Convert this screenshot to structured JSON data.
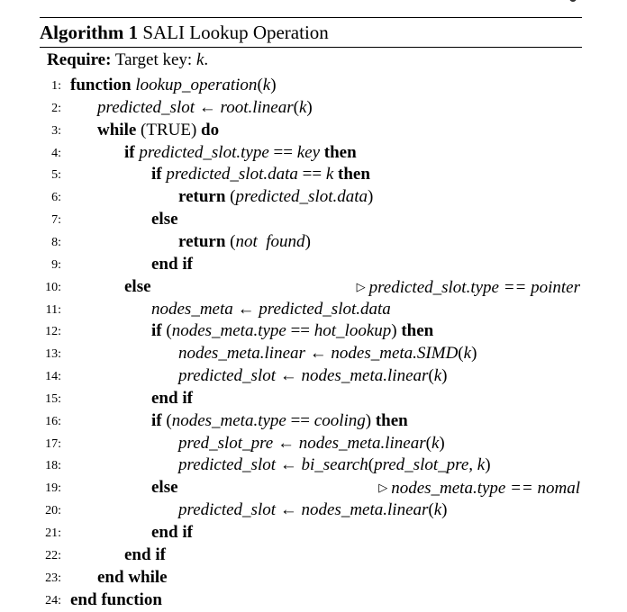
{
  "title": {
    "prefix": "Algorithm 1",
    "text": "SALI Lookup Operation"
  },
  "require": {
    "label": "Require:",
    "text": "Target key: ",
    "var": "k",
    "end": "."
  },
  "lines": [
    {
      "n": "1:",
      "indent": 0,
      "parts": [
        [
          "kw",
          "function "
        ],
        [
          "it",
          "lookup_operation"
        ],
        [
          "n",
          "("
        ],
        [
          "it",
          "k"
        ],
        [
          "n",
          ")"
        ]
      ]
    },
    {
      "n": "2:",
      "indent": 1,
      "parts": [
        [
          "it",
          "predicted_slot"
        ],
        [
          "n",
          " ← "
        ],
        [
          "it",
          "root.linear"
        ],
        [
          "n",
          "("
        ],
        [
          "it",
          "k"
        ],
        [
          "n",
          ")"
        ]
      ]
    },
    {
      "n": "3:",
      "indent": 1,
      "parts": [
        [
          "kw",
          "while "
        ],
        [
          "n",
          "(TRUE) "
        ],
        [
          "kw",
          "do"
        ]
      ]
    },
    {
      "n": "4:",
      "indent": 2,
      "parts": [
        [
          "kw",
          "if "
        ],
        [
          "it",
          "predicted_slot.type"
        ],
        [
          "n",
          " == "
        ],
        [
          "it",
          "key"
        ],
        [
          "kw",
          " then"
        ]
      ]
    },
    {
      "n": "5:",
      "indent": 3,
      "parts": [
        [
          "kw",
          "if "
        ],
        [
          "it",
          "predicted_slot.data"
        ],
        [
          "n",
          " == "
        ],
        [
          "it",
          "k"
        ],
        [
          "kw",
          " then"
        ]
      ]
    },
    {
      "n": "6:",
      "indent": 4,
      "parts": [
        [
          "kw",
          "return "
        ],
        [
          "n",
          "("
        ],
        [
          "it",
          "predicted_slot.data"
        ],
        [
          "n",
          ")"
        ]
      ]
    },
    {
      "n": "7:",
      "indent": 3,
      "parts": [
        [
          "kw",
          "else"
        ]
      ]
    },
    {
      "n": "8:",
      "indent": 4,
      "parts": [
        [
          "kw",
          "return "
        ],
        [
          "n",
          "("
        ],
        [
          "it",
          "not  found"
        ],
        [
          "n",
          ")"
        ]
      ]
    },
    {
      "n": "9:",
      "indent": 3,
      "parts": [
        [
          "kw",
          "end if"
        ]
      ]
    },
    {
      "n": "10:",
      "indent": 2,
      "parts": [
        [
          "kw",
          "else"
        ]
      ],
      "comment": "predicted_slot.type == pointer"
    },
    {
      "n": "11:",
      "indent": 3,
      "parts": [
        [
          "it",
          "nodes_meta"
        ],
        [
          "n",
          " ← "
        ],
        [
          "it",
          "predicted_slot.data"
        ]
      ]
    },
    {
      "n": "12:",
      "indent": 3,
      "parts": [
        [
          "kw",
          "if "
        ],
        [
          "n",
          "("
        ],
        [
          "it",
          "nodes_meta.type"
        ],
        [
          "n",
          " == "
        ],
        [
          "it",
          "hot_lookup"
        ],
        [
          "n",
          ") "
        ],
        [
          "kw",
          "then"
        ]
      ]
    },
    {
      "n": "13:",
      "indent": 4,
      "parts": [
        [
          "it",
          "nodes_meta.linear"
        ],
        [
          "n",
          " ← "
        ],
        [
          "it",
          "nodes_meta.SIMD"
        ],
        [
          "n",
          "("
        ],
        [
          "it",
          "k"
        ],
        [
          "n",
          ")"
        ]
      ]
    },
    {
      "n": "14:",
      "indent": 4,
      "parts": [
        [
          "it",
          "predicted_slot"
        ],
        [
          "n",
          " ← "
        ],
        [
          "it",
          "nodes_meta.linear"
        ],
        [
          "n",
          "("
        ],
        [
          "it",
          "k"
        ],
        [
          "n",
          ")"
        ]
      ]
    },
    {
      "n": "15:",
      "indent": 3,
      "parts": [
        [
          "kw",
          "end if"
        ]
      ]
    },
    {
      "n": "16:",
      "indent": 3,
      "parts": [
        [
          "kw",
          "if "
        ],
        [
          "n",
          "("
        ],
        [
          "it",
          "nodes_meta.type"
        ],
        [
          "n",
          " == "
        ],
        [
          "it",
          "cooling"
        ],
        [
          "n",
          ") "
        ],
        [
          "kw",
          "then"
        ]
      ]
    },
    {
      "n": "17:",
      "indent": 4,
      "parts": [
        [
          "it",
          "pred_slot_pre"
        ],
        [
          "n",
          " ← "
        ],
        [
          "it",
          "nodes_meta.linear"
        ],
        [
          "n",
          "("
        ],
        [
          "it",
          "k"
        ],
        [
          "n",
          ")"
        ]
      ]
    },
    {
      "n": "18:",
      "indent": 4,
      "parts": [
        [
          "it",
          "predicted_slot"
        ],
        [
          "n",
          " ← "
        ],
        [
          "it",
          "bi_search"
        ],
        [
          "n",
          "("
        ],
        [
          "it",
          "pred_slot_pre, k"
        ],
        [
          "n",
          ")"
        ]
      ]
    },
    {
      "n": "19:",
      "indent": 3,
      "parts": [
        [
          "kw",
          "else"
        ]
      ],
      "comment": "nodes_meta.type == nomal"
    },
    {
      "n": "20:",
      "indent": 4,
      "parts": [
        [
          "it",
          "predicted_slot"
        ],
        [
          "n",
          " ← "
        ],
        [
          "it",
          "nodes_meta.linear"
        ],
        [
          "n",
          "("
        ],
        [
          "it",
          "k"
        ],
        [
          "n",
          ")"
        ]
      ]
    },
    {
      "n": "21:",
      "indent": 3,
      "parts": [
        [
          "kw",
          "end if"
        ]
      ]
    },
    {
      "n": "22:",
      "indent": 2,
      "parts": [
        [
          "kw",
          "end if"
        ]
      ]
    },
    {
      "n": "23:",
      "indent": 1,
      "parts": [
        [
          "kw",
          "end while"
        ]
      ]
    },
    {
      "n": "24:",
      "indent": 0,
      "parts": [
        [
          "kw",
          "end function"
        ]
      ]
    }
  ]
}
